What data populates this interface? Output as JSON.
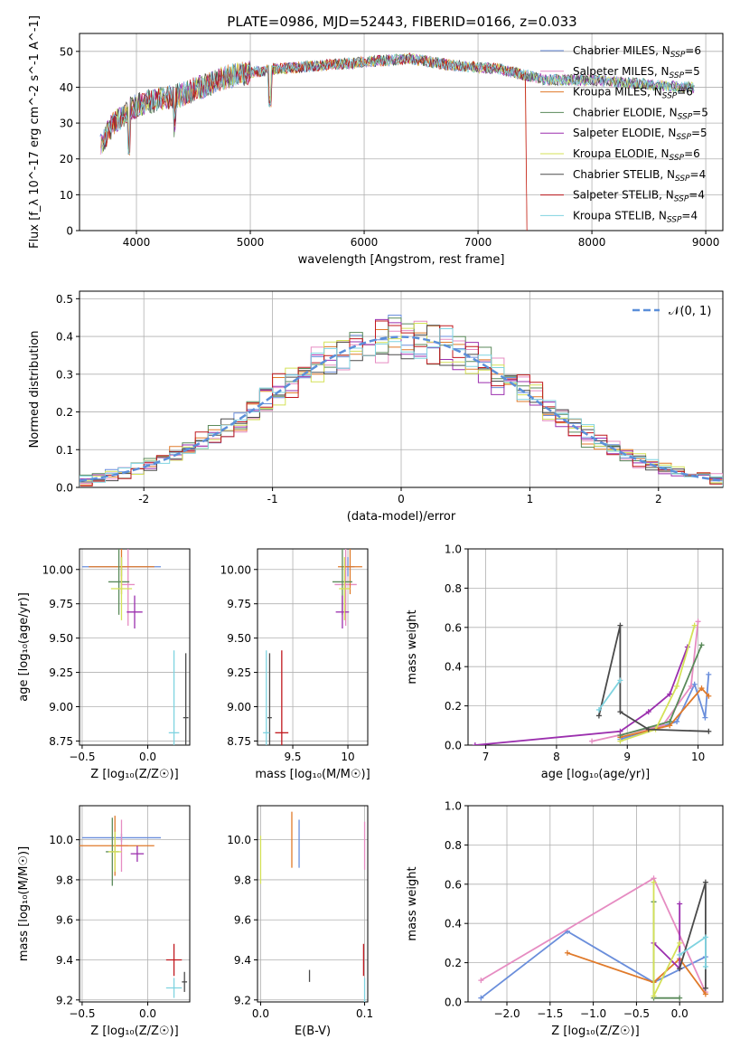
{
  "figure": {
    "title": "PLATE=0986, MJD=52443, FIBERID=0166, z=0.033"
  },
  "legend_entries": [
    {
      "model": "Chabrier MILES",
      "nssp": "6",
      "color": "#6a8edb"
    },
    {
      "model": "Salpeter MILES",
      "nssp": "5",
      "color": "#e68cc2"
    },
    {
      "model": "Kroupa MILES",
      "nssp": "6",
      "color": "#e07a2a"
    },
    {
      "model": "Chabrier ELODIE",
      "nssp": "5",
      "color": "#5a8a5a"
    },
    {
      "model": "Salpeter ELODIE",
      "nssp": "5",
      "color": "#9b2fae"
    },
    {
      "model": "Kroupa ELODIE",
      "nssp": "6",
      "color": "#d4e157"
    },
    {
      "model": "Chabrier STELIB",
      "nssp": "4",
      "color": "#4a4a4a"
    },
    {
      "model": "Salpeter STELIB",
      "nssp": "4",
      "color": "#c0181e"
    },
    {
      "model": "Kroupa STELIB",
      "nssp": "4",
      "color": "#7fd3e0"
    }
  ],
  "chart_data": [
    {
      "id": "spectrum",
      "type": "line",
      "title": "PLATE=0986, MJD=52443, FIBERID=0166, z=0.033",
      "xlabel": "wavelength [Angstrom, rest frame]",
      "ylabel": "Flux [f_λ 10^-17 erg cm^-2 s^-1 A^-1]",
      "xlim": [
        3500,
        9150
      ],
      "ylim": [
        0,
        55
      ],
      "xticks": [
        4000,
        5000,
        6000,
        7000,
        8000,
        9000
      ],
      "yticks": [
        0,
        10,
        20,
        30,
        40,
        50
      ],
      "continuum": {
        "x": [
          3650,
          3800,
          3950,
          4100,
          4400,
          4800,
          5200,
          5600,
          6000,
          6400,
          6800,
          7200,
          7600,
          8000,
          8400,
          8800
        ],
        "y": [
          22,
          30,
          34,
          36,
          38,
          43,
          45,
          46,
          47,
          48,
          46,
          45,
          42,
          42,
          41,
          40
        ]
      },
      "model_extent_max_x": [
        8900,
        8900,
        7420,
        8900,
        8900,
        8900,
        8900,
        7420,
        8900
      ],
      "grid": true
    },
    {
      "id": "residual_histogram",
      "type": "histogram",
      "xlabel": "(data-model)/error",
      "ylabel": "Normed distribution",
      "xlim": [
        -2.5,
        2.5
      ],
      "ylim": [
        0,
        0.52
      ],
      "xticks": [
        -2,
        -1,
        0,
        1,
        2
      ],
      "yticks": [
        0.0,
        0.1,
        0.2,
        0.3,
        0.4,
        0.5
      ],
      "reference_curve": {
        "name": "N(0,1)",
        "label": "𝒩(0, 1)",
        "color": "#5b8fd9",
        "style": "dashed",
        "mean": 0,
        "sigma": 1
      },
      "bin_width": 0.1,
      "grid": true
    },
    {
      "id": "age_vs_Z",
      "type": "errorbar",
      "xlabel": "Z [log₁₀(Z/Z☉)]",
      "ylabel": "age [log₁₀(age/yr)]",
      "xlim": [
        -0.52,
        0.32
      ],
      "ylim": [
        8.72,
        10.15
      ],
      "xticks": [
        -0.5,
        0.0
      ],
      "xticklabels": [
        "−0.5",
        "0.0"
      ],
      "yticks": [
        8.75,
        9.0,
        9.25,
        9.5,
        9.75,
        10.0
      ],
      "yticklabels": [
        "8.75",
        "9.00",
        "9.25",
        "9.50",
        "9.75",
        "10.00"
      ],
      "points": [
        {
          "x": -0.2,
          "y": 10.02,
          "xerr": 0.3,
          "yerr": 0.07,
          "color": "#6a8edb"
        },
        {
          "x": -0.15,
          "y": 9.89,
          "xerr": 0.05,
          "yerr": 0.3,
          "color": "#e68cc2"
        },
        {
          "x": -0.2,
          "y": 10.02,
          "xerr": 0.25,
          "yerr": 0.2,
          "color": "#e07a2a"
        },
        {
          "x": -0.22,
          "y": 9.91,
          "xerr": 0.08,
          "yerr": 0.24,
          "color": "#5a8a5a"
        },
        {
          "x": -0.1,
          "y": 9.69,
          "xerr": 0.06,
          "yerr": 0.12,
          "color": "#9b2fae"
        },
        {
          "x": -0.2,
          "y": 9.86,
          "xerr": 0.08,
          "yerr": 0.23,
          "color": "#d4e157"
        },
        {
          "x": 0.29,
          "y": 8.92,
          "xerr": 0.02,
          "yerr": 0.47,
          "color": "#4a4a4a"
        },
        {
          "x": 0.2,
          "y": 8.81,
          "xerr": 0.04,
          "yerr": 0.6,
          "color": "#7fd3e0"
        }
      ],
      "grid": true
    },
    {
      "id": "age_vs_mass",
      "type": "errorbar",
      "xlabel": "mass [log₁₀(M/M☉)]",
      "xlim": [
        9.18,
        10.18
      ],
      "ylim": [
        8.72,
        10.15
      ],
      "xticks": [
        9.5,
        10.0
      ],
      "yticks": [
        8.75,
        9.0,
        9.25,
        9.5,
        9.75,
        10.0
      ],
      "yticklabels": [
        "8.75",
        "9.00",
        "9.25",
        "9.50",
        "9.75",
        "10.00"
      ],
      "points": [
        {
          "x": 10.0,
          "y": 10.02,
          "xerr": 0.06,
          "yerr": 0.07,
          "color": "#6a8edb"
        },
        {
          "x": 9.98,
          "y": 9.89,
          "xerr": 0.1,
          "yerr": 0.3,
          "color": "#e68cc2"
        },
        {
          "x": 10.02,
          "y": 10.02,
          "xerr": 0.11,
          "yerr": 0.2,
          "color": "#e07a2a"
        },
        {
          "x": 9.95,
          "y": 9.91,
          "xerr": 0.09,
          "yerr": 0.24,
          "color": "#5a8a5a"
        },
        {
          "x": 9.95,
          "y": 9.69,
          "xerr": 0.06,
          "yerr": 0.12,
          "color": "#9b2fae"
        },
        {
          "x": 9.97,
          "y": 9.86,
          "xerr": 0.05,
          "yerr": 0.23,
          "color": "#d4e157"
        },
        {
          "x": 9.29,
          "y": 8.92,
          "xerr": 0.02,
          "yerr": 0.47,
          "color": "#4a4a4a"
        },
        {
          "x": 9.26,
          "y": 8.81,
          "xerr": 0.03,
          "yerr": 0.6,
          "color": "#7fd3e0"
        },
        {
          "x": 9.4,
          "y": 8.81,
          "xerr": 0.06,
          "yerr": 0.6,
          "color": "#c0181e"
        }
      ],
      "grid": true
    },
    {
      "id": "mass_weight_vs_age",
      "type": "line",
      "xlabel": "age [log₁₀(age/yr)]",
      "ylabel": "mass weight",
      "xlim": [
        6.75,
        10.35
      ],
      "ylim": [
        0,
        1.0
      ],
      "xticks": [
        7,
        8,
        9,
        10
      ],
      "yticks": [
        0.0,
        0.2,
        0.4,
        0.6,
        0.8,
        1.0
      ],
      "series": [
        {
          "color": "#6a8edb",
          "x": [
            8.9,
            9.7,
            9.95,
            10.1,
            10.15
          ],
          "y": [
            0.03,
            0.12,
            0.31,
            0.14,
            0.36
          ]
        },
        {
          "color": "#e68cc2",
          "x": [
            8.5,
            9.5,
            9.9,
            10.0
          ],
          "y": [
            0.02,
            0.1,
            0.3,
            0.63
          ]
        },
        {
          "color": "#e07a2a",
          "x": [
            8.9,
            9.6,
            10.05,
            10.15
          ],
          "y": [
            0.04,
            0.1,
            0.29,
            0.25
          ]
        },
        {
          "color": "#5a8a5a",
          "x": [
            8.9,
            9.6,
            10.05
          ],
          "y": [
            0.05,
            0.12,
            0.51
          ]
        },
        {
          "color": "#9b2fae",
          "x": [
            6.85,
            8.9,
            9.3,
            9.6,
            9.85
          ],
          "y": [
            0.0,
            0.07,
            0.17,
            0.26,
            0.5
          ]
        },
        {
          "color": "#d4e157",
          "x": [
            8.9,
            9.4,
            9.7,
            9.95
          ],
          "y": [
            0.02,
            0.08,
            0.3,
            0.61
          ]
        },
        {
          "color": "#4a4a4a",
          "x": [
            8.6,
            8.9,
            8.9,
            9.3,
            10.15
          ],
          "y": [
            0.15,
            0.61,
            0.17,
            0.08,
            0.07
          ]
        },
        {
          "color": "#7fd3e0",
          "x": [
            8.6,
            8.9
          ],
          "y": [
            0.18,
            0.33
          ]
        }
      ],
      "grid": true
    },
    {
      "id": "mass_vs_Z",
      "type": "errorbar",
      "xlabel": "Z [log₁₀(Z/Z☉)]",
      "ylabel": "mass [log₁₀(M/M☉)]",
      "xlim": [
        -0.52,
        0.32
      ],
      "ylim": [
        9.19,
        10.17
      ],
      "xticks": [
        -0.5,
        0.0
      ],
      "xticklabels": [
        "−0.5",
        "0.0"
      ],
      "yticks": [
        9.2,
        9.4,
        9.6,
        9.8,
        10.0
      ],
      "yticklabels": [
        "9.2",
        "9.4",
        "9.6",
        "9.8",
        "10.0"
      ],
      "points": [
        {
          "x": -0.2,
          "y": 10.01,
          "xerr": 0.3,
          "yerr": 0.02,
          "color": "#6a8edb"
        },
        {
          "x": -0.2,
          "y": 9.97,
          "xerr": 0.05,
          "yerr": 0.13,
          "color": "#e68cc2"
        },
        {
          "x": -0.25,
          "y": 9.97,
          "xerr": 0.3,
          "yerr": 0.15,
          "color": "#e07a2a"
        },
        {
          "x": -0.27,
          "y": 9.94,
          "xerr": 0.05,
          "yerr": 0.17,
          "color": "#5a8a5a"
        },
        {
          "x": -0.08,
          "y": 9.93,
          "xerr": 0.05,
          "yerr": 0.04,
          "color": "#9b2fae"
        },
        {
          "x": -0.25,
          "y": 9.94,
          "xerr": 0.05,
          "yerr": 0.1,
          "color": "#d4e157"
        },
        {
          "x": 0.28,
          "y": 9.29,
          "xerr": 0.02,
          "yerr": 0.05,
          "color": "#4a4a4a"
        },
        {
          "x": 0.2,
          "y": 9.26,
          "xerr": 0.06,
          "yerr": 0.05,
          "color": "#7fd3e0"
        },
        {
          "x": 0.2,
          "y": 9.4,
          "xerr": 0.06,
          "yerr": 0.08,
          "color": "#c0181e"
        }
      ],
      "grid": true
    },
    {
      "id": "mass_vs_EBV",
      "type": "errorbar",
      "xlabel": "E(B-V)",
      "xlim": [
        -0.003,
        0.103
      ],
      "ylim": [
        9.19,
        10.17
      ],
      "xticks": [
        0.0,
        0.1
      ],
      "xticklabels": [
        "0.0",
        "0.1"
      ],
      "yticks": [
        9.2,
        9.4,
        9.6,
        9.8,
        10.0
      ],
      "yticklabels": [
        "9.2",
        "9.4",
        "9.6",
        "9.8",
        "10.0"
      ],
      "points": [
        {
          "x": 0.037,
          "y": 9.98,
          "xerr": 0,
          "yerr": 0.12,
          "color": "#6a8edb"
        },
        {
          "x": 0.1,
          "y": 9.97,
          "xerr": 0,
          "yerr": 0.12,
          "color": "#e68cc2"
        },
        {
          "x": 0.03,
          "y": 10.0,
          "xerr": 0,
          "yerr": 0.14,
          "color": "#e07a2a"
        },
        {
          "x": 0.0,
          "y": 9.9,
          "xerr": 0,
          "yerr": 0.12,
          "color": "#d4e157"
        },
        {
          "x": 0.047,
          "y": 9.32,
          "xerr": 0,
          "yerr": 0.03,
          "color": "#4a4a4a"
        },
        {
          "x": 0.1,
          "y": 9.25,
          "xerr": 0,
          "yerr": 0.06,
          "color": "#7fd3e0"
        },
        {
          "x": 0.099,
          "y": 9.4,
          "xerr": 0,
          "yerr": 0.08,
          "color": "#c0181e"
        }
      ],
      "grid": true
    },
    {
      "id": "mass_weight_vs_Z",
      "type": "line",
      "xlabel": "Z [log₁₀(Z/Z☉)]",
      "ylabel": "mass weight",
      "xlim": [
        -2.45,
        0.5
      ],
      "ylim": [
        0,
        1.0
      ],
      "xticks": [
        -2.0,
        -1.5,
        -1.0,
        -0.5,
        0.0
      ],
      "xticklabels": [
        "−2.0",
        "−1.5",
        "−1.0",
        "−0.5",
        "0.0"
      ],
      "yticks": [
        0.0,
        0.2,
        0.4,
        0.6,
        0.8,
        1.0
      ],
      "series": [
        {
          "color": "#6a8edb",
          "x": [
            -2.3,
            -1.3,
            -0.3,
            0.3
          ],
          "y": [
            0.02,
            0.36,
            0.1,
            0.23
          ]
        },
        {
          "color": "#e68cc2",
          "x": [
            -2.3,
            -0.3,
            0.3
          ],
          "y": [
            0.11,
            0.63,
            0.05
          ]
        },
        {
          "color": "#e07a2a",
          "x": [
            -1.3,
            -0.3,
            0.0,
            0.3
          ],
          "y": [
            0.25,
            0.1,
            0.22,
            0.04
          ]
        },
        {
          "color": "#5a8a5a",
          "x": [
            -0.3,
            -0.3,
            0.0
          ],
          "y": [
            0.51,
            0.02,
            0.02
          ]
        },
        {
          "color": "#9b2fae",
          "x": [
            -0.3,
            0.0,
            0.0
          ],
          "y": [
            0.3,
            0.17,
            0.5
          ]
        },
        {
          "color": "#d4e157",
          "x": [
            -0.3,
            -0.3,
            0.0
          ],
          "y": [
            0.61,
            0.03,
            0.3
          ]
        },
        {
          "color": "#4a4a4a",
          "x": [
            0.0,
            0.3,
            0.3
          ],
          "y": [
            0.17,
            0.61,
            0.07
          ]
        },
        {
          "color": "#7fd3e0",
          "x": [
            0.0,
            0.3,
            0.3
          ],
          "y": [
            0.24,
            0.33,
            0.18
          ]
        }
      ],
      "grid": true
    }
  ]
}
